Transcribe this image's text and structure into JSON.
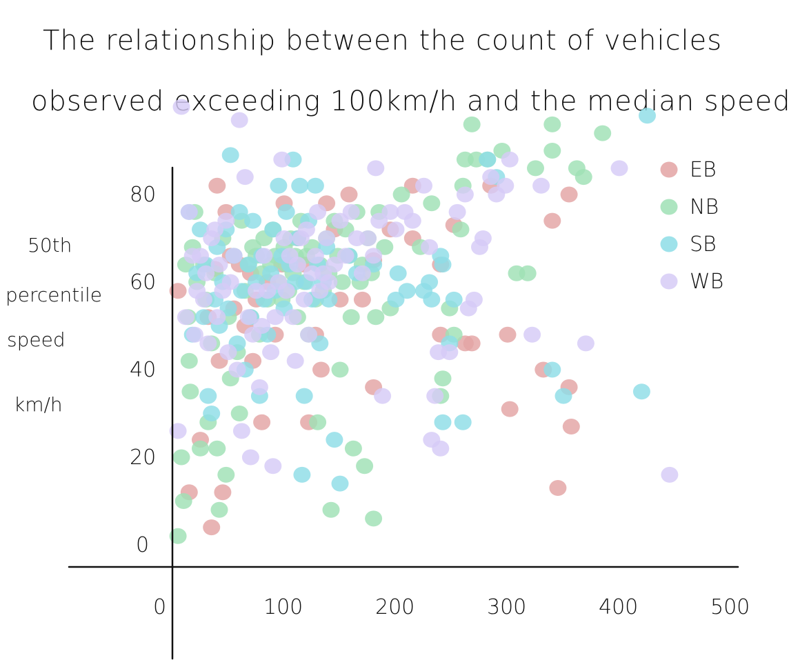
{
  "chart_data": {
    "type": "scatter",
    "title": "The relationship between the count of vehicles observed exceeding 100km/h and the median speed",
    "title_lines": [
      "The relationship between the count of vehicles",
      "observed exceeding 100km/h and the median speed"
    ],
    "xlabel": "",
    "ylabel_lines": [
      "50th",
      "percentile",
      "speed",
      "km/h"
    ],
    "xlim": [
      0,
      500
    ],
    "ylim": [
      -5,
      95
    ],
    "x_ticks": [
      0,
      100,
      200,
      300,
      400,
      500
    ],
    "y_ticks": [
      0,
      20,
      40,
      60,
      80
    ],
    "grid": false,
    "legend_position": "top-right",
    "series": [
      {
        "name": "EB",
        "color": "#e3a3a3",
        "points": [
          [
            5,
            58
          ],
          [
            15,
            12
          ],
          [
            25,
            24
          ],
          [
            32,
            52
          ],
          [
            35,
            4
          ],
          [
            38,
            63
          ],
          [
            40,
            82
          ],
          [
            42,
            42
          ],
          [
            45,
            12
          ],
          [
            48,
            76
          ],
          [
            52,
            66
          ],
          [
            55,
            54
          ],
          [
            60,
            64
          ],
          [
            65,
            50
          ],
          [
            70,
            62
          ],
          [
            72,
            42
          ],
          [
            75,
            56
          ],
          [
            80,
            28
          ],
          [
            85,
            60
          ],
          [
            92,
            48
          ],
          [
            98,
            64
          ],
          [
            100,
            78
          ],
          [
            112,
            70
          ],
          [
            118,
            64
          ],
          [
            122,
            28
          ],
          [
            128,
            48
          ],
          [
            133,
            40
          ],
          [
            138,
            78
          ],
          [
            145,
            72
          ],
          [
            150,
            56
          ],
          [
            158,
            80
          ],
          [
            170,
            56
          ],
          [
            180,
            65
          ],
          [
            180,
            36
          ],
          [
            195,
            72
          ],
          [
            215,
            70
          ],
          [
            215,
            82
          ],
          [
            240,
            64
          ],
          [
            240,
            48
          ],
          [
            252,
            73
          ],
          [
            262,
            46
          ],
          [
            268,
            46
          ],
          [
            285,
            82
          ],
          [
            300,
            48
          ],
          [
            302,
            31
          ],
          [
            332,
            40
          ],
          [
            340,
            74
          ],
          [
            345,
            13
          ],
          [
            355,
            36
          ],
          [
            357,
            27
          ],
          [
            355,
            80
          ]
        ]
      },
      {
        "name": "NB",
        "color": "#9fe0b5",
        "points": [
          [
            5,
            2
          ],
          [
            8,
            20
          ],
          [
            10,
            10
          ],
          [
            12,
            64
          ],
          [
            14,
            52
          ],
          [
            15,
            42
          ],
          [
            16,
            35
          ],
          [
            18,
            68
          ],
          [
            20,
            76
          ],
          [
            22,
            60
          ],
          [
            25,
            22
          ],
          [
            28,
            64
          ],
          [
            30,
            56
          ],
          [
            32,
            28
          ],
          [
            35,
            46
          ],
          [
            38,
            62
          ],
          [
            40,
            22
          ],
          [
            42,
            8
          ],
          [
            45,
            70
          ],
          [
            48,
            16
          ],
          [
            50,
            52
          ],
          [
            52,
            38
          ],
          [
            55,
            66
          ],
          [
            58,
            44
          ],
          [
            60,
            30
          ],
          [
            62,
            74
          ],
          [
            65,
            58
          ],
          [
            68,
            64
          ],
          [
            70,
            52
          ],
          [
            72,
            68
          ],
          [
            75,
            66
          ],
          [
            78,
            48
          ],
          [
            80,
            62
          ],
          [
            82,
            70
          ],
          [
            85,
            56
          ],
          [
            88,
            64
          ],
          [
            90,
            72
          ],
          [
            92,
            66
          ],
          [
            95,
            60
          ],
          [
            98,
            56
          ],
          [
            100,
            68
          ],
          [
            102,
            64
          ],
          [
            104,
            58
          ],
          [
            106,
            70
          ],
          [
            108,
            62
          ],
          [
            110,
            66
          ],
          [
            112,
            52
          ],
          [
            115,
            74
          ],
          [
            118,
            60
          ],
          [
            120,
            66
          ],
          [
            122,
            48
          ],
          [
            125,
            68
          ],
          [
            128,
            56
          ],
          [
            130,
            28
          ],
          [
            132,
            64
          ],
          [
            135,
            58
          ],
          [
            138,
            70
          ],
          [
            140,
            62
          ],
          [
            142,
            8
          ],
          [
            145,
            74
          ],
          [
            148,
            66
          ],
          [
            150,
            40
          ],
          [
            152,
            60
          ],
          [
            155,
            72
          ],
          [
            158,
            66
          ],
          [
            160,
            52
          ],
          [
            162,
            22
          ],
          [
            165,
            76
          ],
          [
            168,
            60
          ],
          [
            170,
            64
          ],
          [
            172,
            18
          ],
          [
            175,
            70
          ],
          [
            178,
            62
          ],
          [
            180,
            6
          ],
          [
            182,
            52
          ],
          [
            185,
            76
          ],
          [
            190,
            68
          ],
          [
            195,
            54
          ],
          [
            205,
            80
          ],
          [
            222,
            68
          ],
          [
            232,
            78
          ],
          [
            240,
            34
          ],
          [
            242,
            38
          ],
          [
            248,
            54
          ],
          [
            252,
            48
          ],
          [
            258,
            72
          ],
          [
            260,
            82
          ],
          [
            262,
            88
          ],
          [
            268,
            96
          ],
          [
            272,
            88
          ],
          [
            282,
            88
          ],
          [
            295,
            90
          ],
          [
            308,
            62
          ],
          [
            318,
            62
          ],
          [
            325,
            86
          ],
          [
            340,
            96
          ],
          [
            340,
            90
          ],
          [
            362,
            86
          ],
          [
            368,
            84
          ],
          [
            385,
            94
          ]
        ]
      },
      {
        "name": "SB",
        "color": "#8ddde6",
        "points": [
          [
            15,
            76
          ],
          [
            18,
            48
          ],
          [
            22,
            62
          ],
          [
            25,
            72
          ],
          [
            28,
            52
          ],
          [
            30,
            64
          ],
          [
            32,
            34
          ],
          [
            35,
            30
          ],
          [
            38,
            56
          ],
          [
            40,
            68
          ],
          [
            42,
            50
          ],
          [
            45,
            60
          ],
          [
            48,
            72
          ],
          [
            50,
            54
          ],
          [
            52,
            89
          ],
          [
            55,
            66
          ],
          [
            58,
            46
          ],
          [
            60,
            76
          ],
          [
            62,
            58
          ],
          [
            65,
            40
          ],
          [
            68,
            64
          ],
          [
            70,
            52
          ],
          [
            72,
            74
          ],
          [
            75,
            60
          ],
          [
            78,
            34
          ],
          [
            80,
            66
          ],
          [
            82,
            56
          ],
          [
            85,
            48
          ],
          [
            88,
            62
          ],
          [
            90,
            72
          ],
          [
            92,
            58
          ],
          [
            95,
            82
          ],
          [
            98,
            66
          ],
          [
            100,
            54
          ],
          [
            102,
            76
          ],
          [
            105,
            64
          ],
          [
            108,
            88
          ],
          [
            110,
            60
          ],
          [
            112,
            70
          ],
          [
            114,
            82
          ],
          [
            116,
            16
          ],
          [
            118,
            34
          ],
          [
            120,
            60
          ],
          [
            122,
            74
          ],
          [
            125,
            56
          ],
          [
            128,
            82
          ],
          [
            130,
            64
          ],
          [
            132,
            46
          ],
          [
            135,
            60
          ],
          [
            138,
            68
          ],
          [
            140,
            56
          ],
          [
            145,
            24
          ],
          [
            150,
            14
          ],
          [
            158,
            66
          ],
          [
            165,
            62
          ],
          [
            180,
            64
          ],
          [
            200,
            56
          ],
          [
            202,
            62
          ],
          [
            210,
            58
          ],
          [
            225,
            58
          ],
          [
            230,
            60
          ],
          [
            232,
            56
          ],
          [
            240,
            66
          ],
          [
            242,
            64
          ],
          [
            242,
            28
          ],
          [
            248,
            46
          ],
          [
            252,
            56
          ],
          [
            260,
            28
          ],
          [
            282,
            88
          ],
          [
            290,
            84
          ],
          [
            340,
            40
          ],
          [
            350,
            34
          ],
          [
            420,
            35
          ],
          [
            425,
            98
          ]
        ]
      },
      {
        "name": "WB",
        "color": "#d6cbf6",
        "points": [
          [
            5,
            26
          ],
          [
            8,
            100
          ],
          [
            12,
            52
          ],
          [
            15,
            76
          ],
          [
            18,
            66
          ],
          [
            20,
            48
          ],
          [
            22,
            58
          ],
          [
            25,
            66
          ],
          [
            28,
            56
          ],
          [
            30,
            62
          ],
          [
            32,
            46
          ],
          [
            35,
            70
          ],
          [
            38,
            72
          ],
          [
            40,
            52
          ],
          [
            42,
            64
          ],
          [
            45,
            58
          ],
          [
            48,
            74
          ],
          [
            50,
            44
          ],
          [
            52,
            60
          ],
          [
            55,
            66
          ],
          [
            58,
            40
          ],
          [
            60,
            97
          ],
          [
            62,
            26
          ],
          [
            65,
            84
          ],
          [
            68,
            52
          ],
          [
            70,
            20
          ],
          [
            72,
            48
          ],
          [
            75,
            58
          ],
          [
            78,
            36
          ],
          [
            80,
            50
          ],
          [
            82,
            66
          ],
          [
            85,
            58
          ],
          [
            88,
            44
          ],
          [
            90,
            18
          ],
          [
            92,
            52
          ],
          [
            95,
            60
          ],
          [
            98,
            88
          ],
          [
            100,
            70
          ],
          [
            102,
            58
          ],
          [
            105,
            66
          ],
          [
            108,
            52
          ],
          [
            110,
            42
          ],
          [
            112,
            64
          ],
          [
            115,
            70
          ],
          [
            118,
            56
          ],
          [
            120,
            72
          ],
          [
            122,
            48
          ],
          [
            125,
            62
          ],
          [
            128,
            66
          ],
          [
            130,
            76
          ],
          [
            132,
            58
          ],
          [
            135,
            62
          ],
          [
            138,
            70
          ],
          [
            140,
            60
          ],
          [
            145,
            64
          ],
          [
            150,
            74
          ],
          [
            155,
            66
          ],
          [
            160,
            76
          ],
          [
            165,
            70
          ],
          [
            170,
            62
          ],
          [
            175,
            70
          ],
          [
            180,
            66
          ],
          [
            182,
            86
          ],
          [
            185,
            74
          ],
          [
            188,
            34
          ],
          [
            195,
            76
          ],
          [
            200,
            72
          ],
          [
            208,
            76
          ],
          [
            215,
            74
          ],
          [
            225,
            82
          ],
          [
            230,
            68
          ],
          [
            232,
            24
          ],
          [
            235,
            34
          ],
          [
            238,
            44
          ],
          [
            240,
            22
          ],
          [
            248,
            44
          ],
          [
            255,
            76
          ],
          [
            262,
            80
          ],
          [
            265,
            54
          ],
          [
            270,
            56
          ],
          [
            275,
            68
          ],
          [
            278,
            70
          ],
          [
            285,
            84
          ],
          [
            290,
            80
          ],
          [
            298,
            82
          ],
          [
            302,
            88
          ],
          [
            322,
            48
          ],
          [
            330,
            82
          ],
          [
            370,
            46
          ],
          [
            400,
            86
          ],
          [
            445,
            16
          ]
        ]
      }
    ]
  }
}
